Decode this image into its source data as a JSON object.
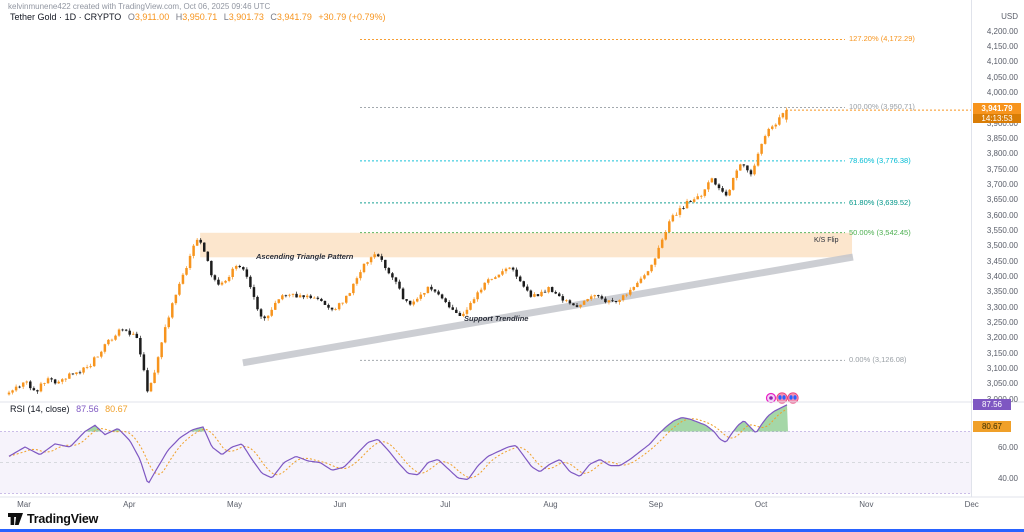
{
  "watermark": "kelvinmunene422 created with TradingView.com, Oct 06, 2025 09:46 UTC",
  "legend": {
    "symbol": "Tether Gold",
    "sep": "·",
    "interval": "1D",
    "exchange": "CRYPTO",
    "o_label": "O",
    "o": "3,911.00",
    "h_label": "H",
    "h": "3,950.71",
    "l_label": "L",
    "l": "3,901.73",
    "c_label": "C",
    "c": "3,941.79",
    "change": "+30.79 (+0.79%)"
  },
  "price_axis": {
    "unit": "USD",
    "last_price": "3,941.79",
    "countdown": "14:13:53"
  },
  "rsi_panel": {
    "title": "RSI",
    "params": "(14, close)",
    "value": "87.56",
    "ma_value": "80.67",
    "tick_labels": [
      "60.00",
      "40.00"
    ]
  },
  "annotations": {
    "triangle": "Ascending Triangle Pattern",
    "support": "Support Trendline",
    "ks_flip": "K/S Flip"
  },
  "fib_levels": [
    {
      "label": "127.20% (4,172.29)",
      "price": 4172.29,
      "color": "#f7941d"
    },
    {
      "label": "100.00% (3,950.71)",
      "price": 3950.71,
      "color": "#9aa0a6"
    },
    {
      "label": "78.60% (3,776.38)",
      "price": 3776.38,
      "color": "#00bcd4"
    },
    {
      "label": "61.80% (3,639.52)",
      "price": 3639.52,
      "color": "#009688"
    },
    {
      "label": "50.00% (3,542.45)",
      "price": 3542.45,
      "color": "#4caf50"
    },
    {
      "label": "0.00% (3,126.08)",
      "price": 3126.08,
      "color": "#9aa0a6"
    }
  ],
  "time_axis": [
    "Mar",
    "Apr",
    "May",
    "Jun",
    "Jul",
    "Aug",
    "Sep",
    "Oct",
    "Nov",
    "Dec"
  ],
  "logo_text": "TradingView",
  "chart_data": {
    "type": "candlestick",
    "title": "Tether Gold · 1D · CRYPTO",
    "ylabel": "USD",
    "ylim": [
      3000,
      4200
    ],
    "y_step": 50,
    "last_candle": {
      "open": 3911.0,
      "high": 3950.71,
      "low": 3901.73,
      "close": 3941.79
    },
    "last_price": 3941.79,
    "colors": {
      "up": "#f7941d",
      "down": "#1c1c1c",
      "rsi": "#7e57c2",
      "rsi_ma": "#f0a029",
      "overbought_fill": "#4caf50",
      "band_fill": "rgba(244,166,74,0.28)",
      "trendline": "#c4c6cc",
      "accent_blue": "#2962ff"
    },
    "ks_flip_zone": {
      "price_top": 3542,
      "price_bottom": 3462,
      "x_start_frac": 0.206,
      "x_end_frac": 0.877
    },
    "support_trendline": {
      "x1_frac": 0.25,
      "price1": 3118,
      "x2_frac": 0.878,
      "price2": 3463
    },
    "price_path": [
      [
        9,
        3015
      ],
      [
        20,
        3040
      ],
      [
        30,
        3050
      ],
      [
        40,
        3030
      ],
      [
        52,
        3065
      ],
      [
        62,
        3055
      ],
      [
        72,
        3075
      ],
      [
        82,
        3085
      ],
      [
        92,
        3105
      ],
      [
        100,
        3140
      ],
      [
        108,
        3175
      ],
      [
        116,
        3200
      ],
      [
        124,
        3235
      ],
      [
        132,
        3220
      ],
      [
        140,
        3200
      ],
      [
        146,
        3120
      ],
      [
        151,
        3025
      ],
      [
        158,
        3090
      ],
      [
        166,
        3200
      ],
      [
        174,
        3290
      ],
      [
        182,
        3360
      ],
      [
        190,
        3430
      ],
      [
        197,
        3495
      ],
      [
        203,
        3525
      ],
      [
        209,
        3470
      ],
      [
        216,
        3390
      ],
      [
        223,
        3365
      ],
      [
        230,
        3395
      ],
      [
        238,
        3425
      ],
      [
        246,
        3435
      ],
      [
        252,
        3380
      ],
      [
        258,
        3330
      ],
      [
        264,
        3270
      ],
      [
        270,
        3260
      ],
      [
        277,
        3300
      ],
      [
        284,
        3330
      ],
      [
        291,
        3345
      ],
      [
        298,
        3340
      ],
      [
        305,
        3330
      ],
      [
        312,
        3340
      ],
      [
        319,
        3325
      ],
      [
        326,
        3315
      ],
      [
        333,
        3295
      ],
      [
        340,
        3300
      ],
      [
        347,
        3320
      ],
      [
        354,
        3355
      ],
      [
        361,
        3400
      ],
      [
        368,
        3440
      ],
      [
        375,
        3465
      ],
      [
        381,
        3470
      ],
      [
        387,
        3440
      ],
      [
        393,
        3415
      ],
      [
        399,
        3380
      ],
      [
        405,
        3340
      ],
      [
        411,
        3310
      ],
      [
        417,
        3320
      ],
      [
        424,
        3345
      ],
      [
        431,
        3360
      ],
      [
        438,
        3350
      ],
      [
        445,
        3330
      ],
      [
        452,
        3300
      ],
      [
        459,
        3280
      ],
      [
        466,
        3275
      ],
      [
        473,
        3310
      ],
      [
        480,
        3345
      ],
      [
        487,
        3370
      ],
      [
        494,
        3390
      ],
      [
        501,
        3410
      ],
      [
        508,
        3425
      ],
      [
        514,
        3430
      ],
      [
        520,
        3405
      ],
      [
        526,
        3370
      ],
      [
        532,
        3345
      ],
      [
        538,
        3335
      ],
      [
        545,
        3350
      ],
      [
        552,
        3360
      ],
      [
        559,
        3350
      ],
      [
        566,
        3330
      ],
      [
        573,
        3305
      ],
      [
        580,
        3295
      ],
      [
        587,
        3315
      ],
      [
        594,
        3335
      ],
      [
        601,
        3330
      ],
      [
        608,
        3320
      ],
      [
        615,
        3318
      ],
      [
        622,
        3325
      ],
      [
        629,
        3340
      ],
      [
        636,
        3365
      ],
      [
        643,
        3385
      ],
      [
        649,
        3400
      ],
      [
        655,
        3440
      ],
      [
        661,
        3480
      ],
      [
        667,
        3530
      ],
      [
        673,
        3575
      ],
      [
        679,
        3605
      ],
      [
        685,
        3620
      ],
      [
        691,
        3640
      ],
      [
        697,
        3650
      ],
      [
        703,
        3660
      ],
      [
        709,
        3690
      ],
      [
        715,
        3715
      ],
      [
        720,
        3700
      ],
      [
        725,
        3670
      ],
      [
        730,
        3665
      ],
      [
        735,
        3700
      ],
      [
        740,
        3740
      ],
      [
        745,
        3765
      ],
      [
        750,
        3755
      ],
      [
        755,
        3735
      ],
      [
        760,
        3790
      ],
      [
        765,
        3835
      ],
      [
        770,
        3865
      ],
      [
        775,
        3885
      ],
      [
        780,
        3905
      ],
      [
        784,
        3920
      ],
      [
        788,
        3941.79
      ]
    ],
    "rsi": {
      "upper_band": 70,
      "lower_band": 30,
      "mid": 50,
      "last": 87.56,
      "ma_last": 80.67,
      "path": [
        [
          9,
          54
        ],
        [
          25,
          60
        ],
        [
          40,
          55
        ],
        [
          55,
          62
        ],
        [
          70,
          60
        ],
        [
          85,
          70
        ],
        [
          95,
          74
        ],
        [
          105,
          68
        ],
        [
          118,
          72
        ],
        [
          130,
          64
        ],
        [
          140,
          52
        ],
        [
          148,
          36
        ],
        [
          156,
          45
        ],
        [
          168,
          58
        ],
        [
          180,
          66
        ],
        [
          192,
          71
        ],
        [
          203,
          73
        ],
        [
          212,
          60
        ],
        [
          222,
          55
        ],
        [
          232,
          60
        ],
        [
          242,
          62
        ],
        [
          252,
          52
        ],
        [
          262,
          43
        ],
        [
          272,
          40
        ],
        [
          284,
          50
        ],
        [
          296,
          54
        ],
        [
          308,
          51
        ],
        [
          320,
          50
        ],
        [
          332,
          45
        ],
        [
          344,
          47
        ],
        [
          356,
          55
        ],
        [
          368,
          63
        ],
        [
          378,
          65
        ],
        [
          388,
          58
        ],
        [
          398,
          50
        ],
        [
          408,
          43
        ],
        [
          418,
          42
        ],
        [
          428,
          50
        ],
        [
          438,
          52
        ],
        [
          448,
          46
        ],
        [
          458,
          40
        ],
        [
          468,
          39
        ],
        [
          478,
          48
        ],
        [
          488,
          54
        ],
        [
          498,
          57
        ],
        [
          508,
          60
        ],
        [
          516,
          61
        ],
        [
          524,
          54
        ],
        [
          532,
          47
        ],
        [
          540,
          44
        ],
        [
          550,
          49
        ],
        [
          560,
          52
        ],
        [
          570,
          44
        ],
        [
          580,
          41
        ],
        [
          590,
          49
        ],
        [
          600,
          52
        ],
        [
          610,
          48
        ],
        [
          620,
          48
        ],
        [
          630,
          52
        ],
        [
          640,
          57
        ],
        [
          650,
          62
        ],
        [
          658,
          68
        ],
        [
          666,
          73
        ],
        [
          674,
          77
        ],
        [
          682,
          79
        ],
        [
          690,
          78
        ],
        [
          698,
          76
        ],
        [
          706,
          74
        ],
        [
          714,
          70
        ],
        [
          720,
          65
        ],
        [
          726,
          63
        ],
        [
          732,
          69
        ],
        [
          738,
          74
        ],
        [
          744,
          77
        ],
        [
          750,
          73
        ],
        [
          756,
          69
        ],
        [
          762,
          75
        ],
        [
          768,
          80
        ],
        [
          774,
          83
        ],
        [
          780,
          85
        ],
        [
          788,
          87.56
        ]
      ]
    }
  }
}
